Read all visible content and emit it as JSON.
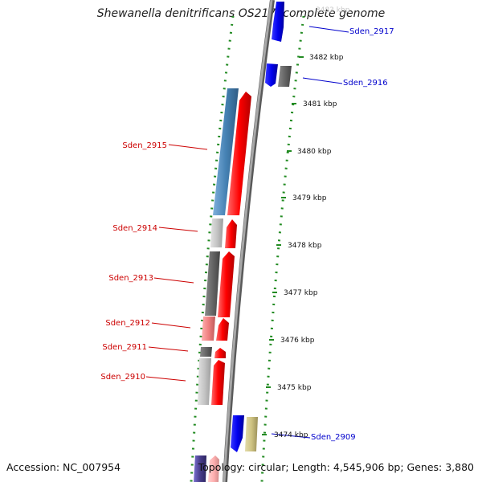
{
  "title": "Shewanella denitrificans OS217, complete genome",
  "footer": {
    "accession": "Accession: NC_007954",
    "summary": "Topology: circular; Length: 4,545,906 bp; Genes: 3,880"
  },
  "scale_labels": [
    "3483 kbp",
    "3482 kbp",
    "3481 kbp",
    "3480 kbp",
    "3479 kbp",
    "3478 kbp",
    "3477 kbp",
    "3476 kbp",
    "3475 kbp",
    "3474 kbp"
  ],
  "gene_labels": [
    "Sden_2917",
    "Sden_2916",
    "Sden_2915",
    "Sden_2914",
    "Sden_2913",
    "Sden_2912",
    "Sden_2911",
    "Sden_2910",
    "Sden_2909"
  ],
  "colors": {
    "backbone": "#8c8c8c",
    "dotted_track": "#228b22",
    "forward_gene": "#ff0000",
    "reverse_gene": "#0000ff",
    "label_red": "#cc0000",
    "label_blue": "#0000cc"
  }
}
